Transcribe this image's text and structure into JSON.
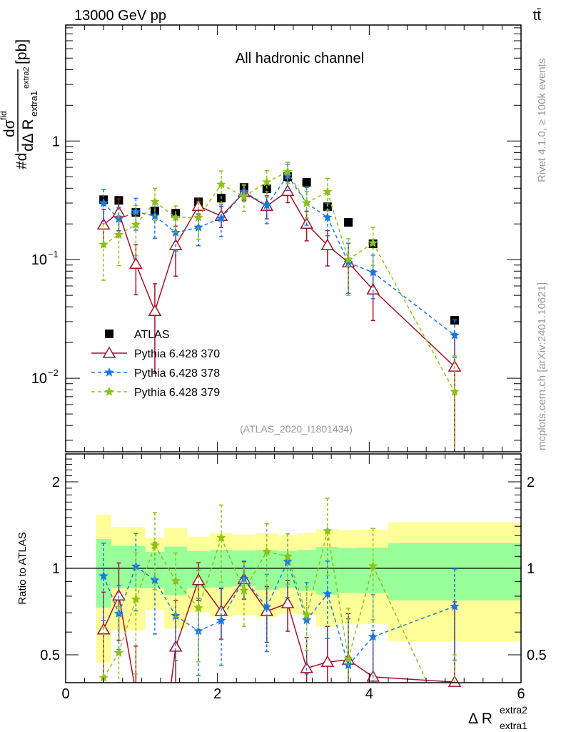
{
  "header": {
    "energy_label": "13000 GeV pp",
    "process_label": "tt̄"
  },
  "side_text": {
    "rivet": "Rivet 4.1.0, ≥ 100k events",
    "mcplots": "mcplots.cern.ch [arXiv:2401.10621]"
  },
  "chart_data": [
    {
      "type": "line",
      "panel": "main",
      "title": "All hadronic channel",
      "analysis_label": "(ATLAS_2020_I1801434)",
      "ylabel": {
        "prefix": "#d",
        "num": "dσ",
        "num_sup": "fid",
        "den": "dΔ R",
        "den_sub": "extra1",
        "den_sup": "extra2",
        "unit": "[pb]"
      },
      "yscale": "log",
      "ylim": [
        0.0024,
        9.5
      ],
      "xlim": [
        0,
        6
      ],
      "ytick_labels": [
        {
          "value": 1,
          "label": "1"
        },
        {
          "value": 0.1,
          "base": "10",
          "exp": "−1"
        },
        {
          "value": 0.01,
          "base": "10",
          "exp": "−2"
        }
      ],
      "x": [
        0.5,
        0.7,
        0.925,
        1.175,
        1.45,
        1.75,
        2.05,
        2.35,
        2.65,
        2.925,
        3.175,
        3.45,
        3.725,
        4.05,
        5.125
      ],
      "legend_position": "lower-left",
      "series": [
        {
          "name": "ATLAS",
          "color": "#000000",
          "marker": "square",
          "values": [
            0.32,
            0.316,
            0.25,
            0.257,
            0.246,
            0.307,
            0.33,
            0.406,
            0.395,
            0.5,
            0.448,
            0.279,
            0.206,
            0.136,
            0.0308
          ]
        },
        {
          "name": "Pythia 6.428 370",
          "color": "#a0122a",
          "marker": "triangle",
          "line": "solid",
          "values": [
            0.197,
            0.25,
            0.092,
            0.0368,
            0.132,
            0.283,
            0.233,
            0.368,
            0.283,
            0.378,
            0.2,
            0.132,
            0.0946,
            0.0558,
            0.0125
          ],
          "rel_err": [
            0.35,
            0.3,
            0.45,
            0.7,
            0.45,
            0.15,
            0.2,
            0.15,
            0.22,
            0.2,
            0.28,
            0.33,
            0.45,
            0.45,
            0.9
          ]
        },
        {
          "name": "Pythia 6.428 378",
          "color": "#1a78e6",
          "marker": "star",
          "line": "dashed",
          "values": [
            0.3,
            0.22,
            0.253,
            0.233,
            0.169,
            0.187,
            0.223,
            0.373,
            0.287,
            0.51,
            0.3,
            0.227,
            0.0946,
            0.078,
            0.023
          ],
          "rel_err": [
            0.3,
            0.25,
            0.3,
            0.35,
            0.3,
            0.3,
            0.3,
            0.15,
            0.3,
            0.25,
            0.35,
            0.3,
            0.45,
            0.4,
            0.35
          ]
        },
        {
          "name": "Pythia 6.428 379",
          "color": "#8cc21a",
          "marker": "star",
          "line": "dashed",
          "values": [
            0.134,
            0.162,
            0.197,
            0.307,
            0.227,
            0.227,
            0.43,
            0.34,
            0.45,
            0.55,
            0.3,
            0.373,
            0.1,
            0.138,
            0.0077
          ],
          "rel_err": [
            0.5,
            0.45,
            0.45,
            0.3,
            0.25,
            0.35,
            0.3,
            0.25,
            0.25,
            0.2,
            0.25,
            0.3,
            0.5,
            0.35,
            1.0
          ]
        }
      ]
    },
    {
      "type": "line",
      "panel": "ratio",
      "ylabel": "Ratio to ATLAS",
      "xlabel": {
        "main": "Δ R",
        "sub": "extra1",
        "sup": "extra2"
      },
      "yscale": "log",
      "ylim": [
        0.4,
        2.5
      ],
      "xlim": [
        0,
        6
      ],
      "ytick_labels": [
        {
          "value": 2,
          "label": "2"
        },
        {
          "value": 1,
          "label": "1"
        },
        {
          "value": 0.5,
          "label": "0.5"
        }
      ],
      "xtick_labels": [
        {
          "value": 0,
          "label": "0"
        },
        {
          "value": 2,
          "label": "2"
        },
        {
          "value": 4,
          "label": "4"
        },
        {
          "value": 6,
          "label": "6"
        }
      ],
      "x": [
        0.5,
        0.7,
        0.925,
        1.175,
        1.45,
        1.75,
        2.05,
        2.35,
        2.65,
        2.925,
        3.175,
        3.45,
        3.725,
        4.05,
        5.125
      ],
      "bin_edges": [
        0.4,
        0.6,
        0.8,
        1.05,
        1.3,
        1.6,
        1.9,
        2.2,
        2.5,
        2.8,
        3.05,
        3.3,
        3.6,
        3.85,
        4.25,
        6.0
      ],
      "band_outer": {
        "color": "#ffff99",
        "lo": [
          0.47,
          0.609,
          0.609,
          0.716,
          0.617,
          0.702,
          0.679,
          0.689,
          0.676,
          0.696,
          0.689,
          0.626,
          0.639,
          0.639,
          0.557
        ],
        "hi": [
          1.537,
          1.39,
          1.39,
          1.277,
          1.38,
          1.289,
          1.324,
          1.311,
          1.324,
          1.306,
          1.324,
          1.37,
          1.357,
          1.362,
          1.445
        ]
      },
      "band_inner": {
        "color": "#99ff99",
        "lo": [
          0.73,
          0.853,
          0.853,
          0.853,
          0.806,
          0.853,
          0.858,
          0.866,
          0.842,
          0.853,
          0.834,
          0.81,
          0.822,
          0.82,
          0.773
        ],
        "hi": [
          1.265,
          1.194,
          1.194,
          1.141,
          1.19,
          1.147,
          1.16,
          1.154,
          1.158,
          1.15,
          1.158,
          1.187,
          1.176,
          1.18,
          1.222
        ]
      },
      "series": [
        {
          "name": "Pythia 6.428 370",
          "color": "#a0122a",
          "marker": "triangle",
          "line": "solid",
          "values": [
            0.612,
            0.803,
            0.37,
            0.143,
            0.533,
            0.909,
            0.709,
            0.918,
            0.709,
            0.755,
            0.449,
            0.472,
            0.48,
            0.419,
            0.402
          ]
        },
        {
          "name": "Pythia 6.428 378",
          "color": "#1a78e6",
          "marker": "star",
          "line": "dashed",
          "values": [
            0.94,
            0.696,
            1.016,
            0.909,
            0.683,
            0.605,
            0.657,
            0.921,
            0.733,
            1.055,
            0.66,
            0.815,
            0.46,
            0.578,
            0.737
          ]
        },
        {
          "name": "Pythia 6.428 379",
          "color": "#8cc21a",
          "marker": "star",
          "line": "dashed",
          "values": [
            0.416,
            0.508,
            0.78,
            1.203,
            0.904,
            0.727,
            1.277,
            0.837,
            1.143,
            1.1,
            0.689,
            1.349,
            0.484,
            1.019,
            0.25
          ]
        }
      ]
    }
  ]
}
